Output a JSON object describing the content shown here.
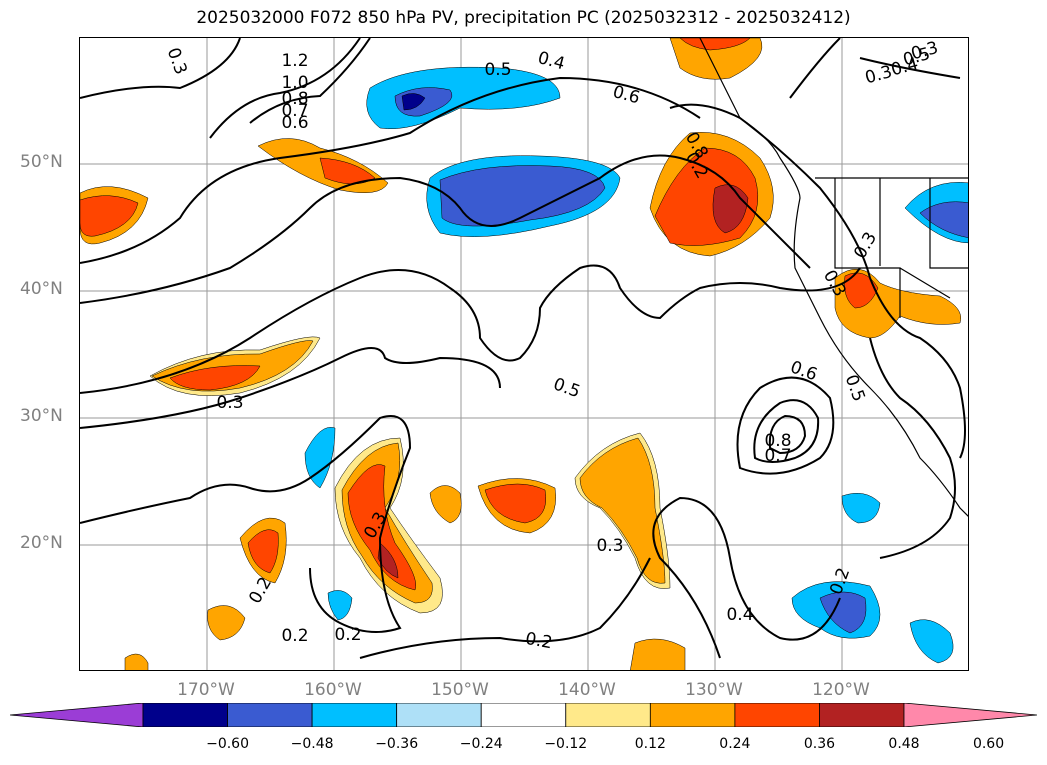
{
  "title": "2025032000 F072 850 hPa PV, precipitation PC (2025032312 - 2025032412)",
  "lat_labels": [
    "50°N",
    "40°N",
    "30°N",
    "20°N"
  ],
  "lon_labels": [
    "170°W",
    "160°W",
    "150°W",
    "140°W",
    "130°W",
    "120°W"
  ],
  "colorbar": {
    "ticks": [
      "−0.60",
      "−0.48",
      "−0.36",
      "−0.24",
      "−0.12",
      "0.12",
      "0.24",
      "0.36",
      "0.48",
      "0.60"
    ],
    "colors": [
      "#9b3dd6",
      "#00008b",
      "#3a5bd1",
      "#00bfff",
      "#aee0f7",
      "#ffffff",
      "#ffe98a",
      "#ffa500",
      "#ff4500",
      "#b22222",
      "#ff88aa"
    ]
  },
  "contour_labels": [
    "0.3",
    "1.2",
    "1.0",
    "0.8",
    "0.7",
    "0.6",
    "0.5",
    "0.4",
    "0.6",
    "0.8",
    "0.2",
    "0.3",
    "0.4",
    "0.5",
    "0.3",
    "0.3",
    "0.5",
    "0.3",
    "0.6",
    "0.5",
    "0.8",
    "0.7",
    "0.3",
    "0.3",
    "0.2",
    "0.2",
    "0.2",
    "0.2",
    "0.4",
    "0.2",
    "0.3"
  ]
}
